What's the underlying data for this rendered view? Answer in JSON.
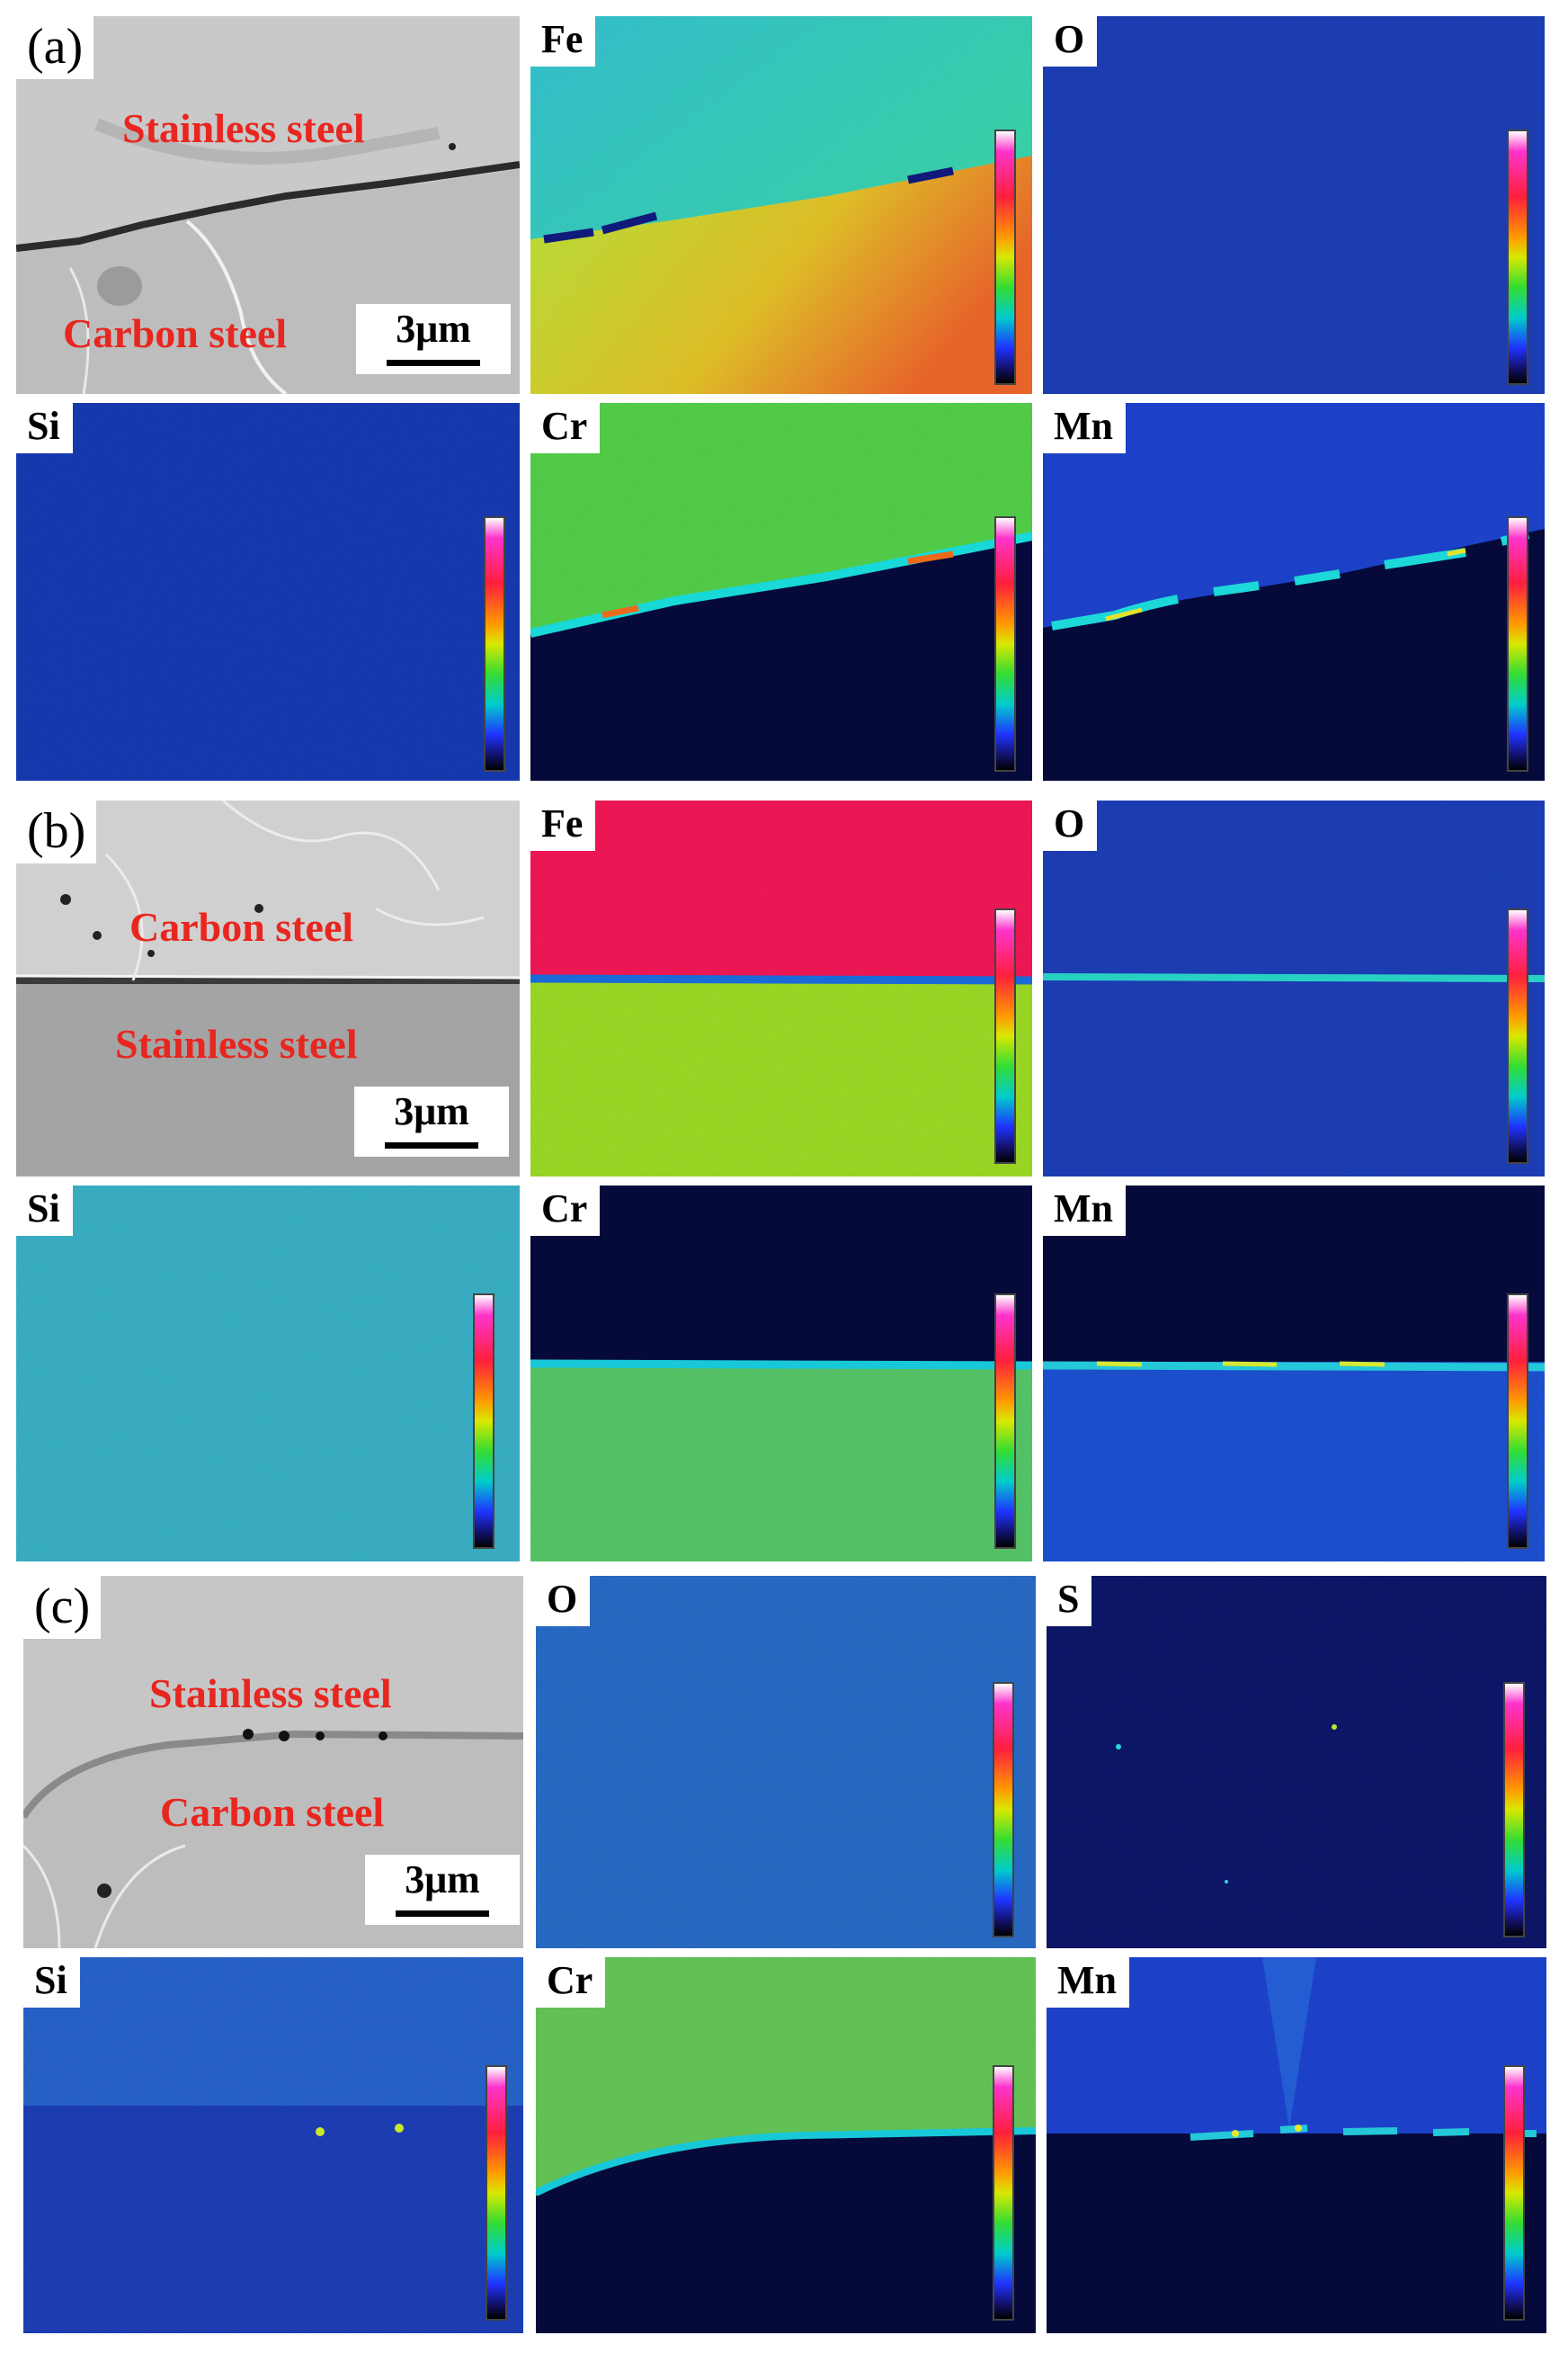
{
  "sections": [
    {
      "label": "(a)",
      "sem": {
        "upper_text": "Stainless steel",
        "lower_text": "Carbon steel",
        "scale": "3μm"
      },
      "maps": [
        {
          "element": "Fe"
        },
        {
          "element": "O"
        },
        {
          "element": "Si"
        },
        {
          "element": "Cr"
        },
        {
          "element": "Mn"
        }
      ]
    },
    {
      "label": "(b)",
      "sem": {
        "upper_text": "Carbon steel",
        "lower_text": "Stainless steel",
        "scale": "3μm"
      },
      "maps": [
        {
          "element": "Fe"
        },
        {
          "element": "O"
        },
        {
          "element": "Si"
        },
        {
          "element": "Cr"
        },
        {
          "element": "Mn"
        }
      ]
    },
    {
      "label": "(c)",
      "sem": {
        "upper_text": "Stainless steel",
        "lower_text": "Carbon steel",
        "scale": "3μm"
      },
      "maps": [
        {
          "element": "O"
        },
        {
          "element": "S"
        },
        {
          "element": "Si"
        },
        {
          "element": "Cr"
        },
        {
          "element": "Mn"
        }
      ]
    }
  ],
  "colors": {
    "sem_text": "#e8261f",
    "colorbar_top": "#ffffff",
    "colorbar_bottom": "#000000"
  }
}
